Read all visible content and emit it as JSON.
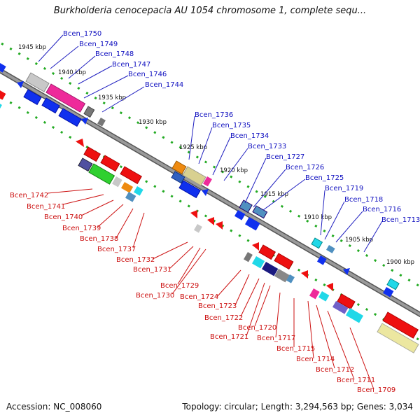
{
  "title": "Burkholderia cenocepacia AU 1054 chromosome 1, complete sequ...",
  "footer": {
    "accession": "Accession: NC_008060",
    "summary": "Topology: circular; Length: 3,294,563 bp; Genes: 3,034"
  },
  "kbp_labels": [
    "1945 kbp",
    "1940 kbp",
    "1935 kbp",
    "1930 kbp",
    "1925 kbp",
    "1920 kbp",
    "1915 kbp",
    "1910 kbp",
    "1905 kbp",
    "1900 kbp"
  ],
  "top_genes": [
    "Bcen_1750",
    "Bcen_1749",
    "Bcen_1748",
    "Bcen_1747",
    "Bcen_1746",
    "Bcen_1744",
    "Bcen_1736",
    "Bcen_1735",
    "Bcen_1734",
    "Bcen_1733",
    "Bcen_1727",
    "Bcen_1726",
    "Bcen_1725",
    "Bcen_1719",
    "Bcen_1718",
    "Bcen_1716",
    "Bcen_1713"
  ],
  "bottom_genes": [
    "Bcen_1742",
    "Bcen_1741",
    "Bcen_1740",
    "Bcen_1739",
    "Bcen_1738",
    "Bcen_1737",
    "Bcen_1732",
    "Bcen_1731",
    "Bcen_1729",
    "Bcen_1730",
    "Bcen_1724",
    "Bcen_1723",
    "Bcen_1722",
    "Bcen_1720",
    "Bcen_1721",
    "Bcen_1717",
    "Bcen_1715",
    "Bcen_1714",
    "Bcen_1712",
    "Bcen_1711",
    "Bcen_1709"
  ],
  "colors": {
    "forward_strand": "#0000ee",
    "reverse_strand": "#ee0000",
    "backbone": "#888888",
    "tick": "#22aa22"
  }
}
